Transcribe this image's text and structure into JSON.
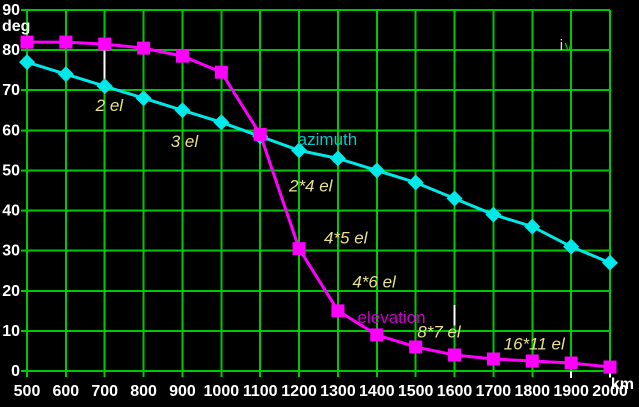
{
  "window": {
    "background": "#000000"
  },
  "chart_data": {
    "type": "line",
    "title": "",
    "plot_number": "iv",
    "xlabel": "km",
    "ylabel": "deg",
    "xlim": [
      500,
      2000
    ],
    "ylim": [
      0,
      90
    ],
    "xticks": [
      500,
      600,
      700,
      800,
      900,
      1000,
      1100,
      1200,
      1300,
      1400,
      1500,
      1600,
      1700,
      1800,
      1900,
      2000
    ],
    "yticks": [
      0,
      10,
      20,
      30,
      40,
      50,
      60,
      70,
      80,
      90
    ],
    "grid": true,
    "legend_position": "inline-labels",
    "colors": {
      "grid": "#00c800",
      "background": "#000000",
      "tick_labels": "#ffffff",
      "annotation_default": "#e8e08a"
    },
    "x": [
      500,
      600,
      700,
      800,
      900,
      1000,
      1100,
      1200,
      1300,
      1400,
      1500,
      1600,
      1700,
      1800,
      1900,
      2000
    ],
    "series": [
      {
        "name": "azimuth",
        "color": "#00e9e9",
        "marker": "diamond",
        "values": [
          77,
          74,
          71,
          68,
          65,
          62,
          58.5,
          55,
          53,
          50,
          47,
          43,
          39,
          36,
          31,
          27
        ]
      },
      {
        "name": "elevation",
        "color": "#ff00ff",
        "marker": "square",
        "values": [
          82,
          82,
          81.5,
          80.5,
          78.5,
          74.5,
          59,
          30.5,
          15,
          9,
          6,
          4,
          3,
          2.5,
          2,
          1
        ]
      }
    ],
    "annotations": [
      {
        "id": "annotation-2-el",
        "text": "2 el",
        "km": 712,
        "deg": 66.3,
        "color": "#e8e08a",
        "italic": true,
        "small": false
      },
      {
        "id": "annotation-3-el",
        "text": "3 el",
        "km": 905,
        "deg": 57.3,
        "color": "#e8e08a",
        "italic": true,
        "small": false
      },
      {
        "id": "annotation-azimuth",
        "text": "azimuth",
        "km": 1273,
        "deg": 57.8,
        "color": "#00c9c9",
        "italic": false,
        "small": false
      },
      {
        "id": "annotation-2x4-el",
        "text": "2*4 el",
        "km": 1230,
        "deg": 46.3,
        "color": "#e8e08a",
        "italic": true,
        "small": false
      },
      {
        "id": "annotation-4x5-el",
        "text": "4*5 el",
        "km": 1320,
        "deg": 33.3,
        "color": "#e8e08a",
        "italic": true,
        "small": false
      },
      {
        "id": "annotation-4x6-el",
        "text": "4*6 el",
        "km": 1393,
        "deg": 22.3,
        "color": "#e8e08a",
        "italic": true,
        "small": false
      },
      {
        "id": "annotation-elevation",
        "text": "elevation",
        "km": 1438,
        "deg": 13.5,
        "color": "#cc00cc",
        "italic": false,
        "small": false
      },
      {
        "id": "annotation-8x7-el",
        "text": "8*7 el",
        "km": 1560,
        "deg": 9.8,
        "color": "#e8e08a",
        "italic": true,
        "small": false
      },
      {
        "id": "annotation-16x11-el",
        "text": "16*11 el",
        "km": 1805,
        "deg": 6.8,
        "color": "#e8e08a",
        "italic": true,
        "small": false
      },
      {
        "id": "annotation-iv-i",
        "text": "i",
        "km": 1875,
        "deg": 81.5,
        "color": "#e0e0e0",
        "italic": false,
        "small": true
      },
      {
        "id": "annotation-iv-v",
        "text": "v",
        "km": 1893,
        "deg": 81.3,
        "color": "#00c800",
        "italic": false,
        "small": true
      }
    ],
    "reference_lines": [
      {
        "km": 700,
        "deg_from": 80,
        "deg_to": 71.5,
        "color": "#ffffff"
      },
      {
        "km": 1600,
        "deg_from": 16.5,
        "deg_to": 11.3,
        "color": "#ffffff"
      },
      {
        "km": 1900,
        "deg_from": 0,
        "deg_to": -1.8,
        "color": "#ffffff"
      },
      {
        "km": 2000,
        "deg_from": 0,
        "deg_to": -1.6,
        "color": "#ffffff"
      }
    ]
  }
}
